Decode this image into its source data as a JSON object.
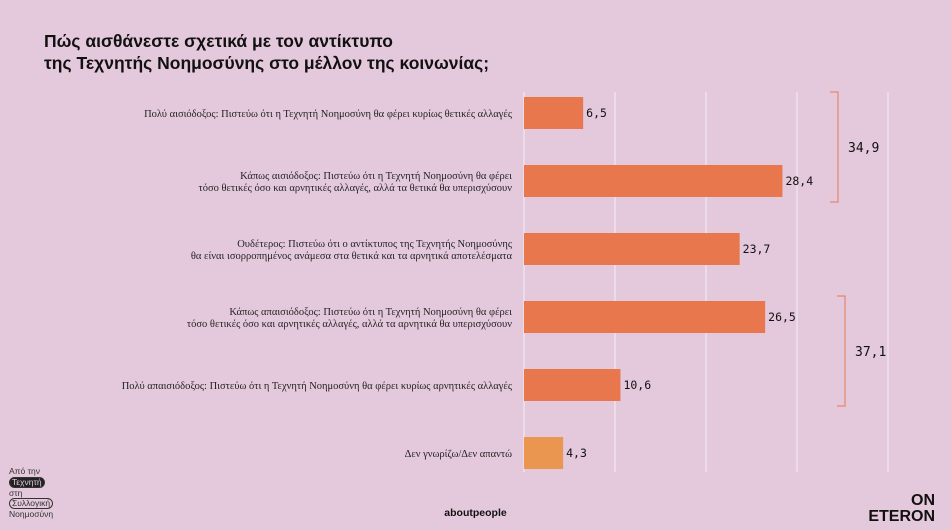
{
  "title": {
    "line1": "Πώς αισθάνεστε σχετικά με τον αντίκτυπο",
    "line2": "της Τεχνητής Νοημοσύνης στο μέλλον της κοινωνίας;"
  },
  "colors": {
    "background": "#e4c9dc",
    "bar": "#e8774e",
    "bar_last": "#ea9550",
    "bracket": "#e8774e",
    "grid": "#f3eef2"
  },
  "chart_data": {
    "type": "bar",
    "orientation": "horizontal",
    "categories": [
      [
        "Πολύ αισιόδοξος: Πιστεύω ότι η Τεχνητή Νοημοσύνη θα φέρει κυρίως θετικές αλλαγές"
      ],
      [
        "Κάπως αισιόδοξος: Πιστεύω ότι η Τεχνητή Νοημοσύνη θα φέρει",
        "τόσο θετικές όσο και αρνητικές αλλαγές, αλλά τα θετικά θα υπερισχύσουν"
      ],
      [
        "Ουδέτερος: Πιστεύω ότι ο αντίκτυπος της Τεχνητής Νοημοσύνης",
        "θα είναι ισορροπημένος ανάμεσα στα θετικά και τα αρνητικά αποτελέσματα"
      ],
      [
        "Κάπως απαισιόδοξος: Πιστεύω ότι η Τεχνητή Νοημοσύνη θα φέρει",
        "τόσο θετικές όσο και αρνητικές αλλαγές, αλλά τα αρνητικά θα υπερισχύσουν"
      ],
      [
        "Πολύ απαισιόδοξος: Πιστεύω ότι η Τεχνητή Νοημοσύνη θα φέρει κυρίως αρνητικές αλλαγές"
      ],
      [
        "Δεν γνωρίζω/Δεν απαντώ"
      ]
    ],
    "values": [
      6.5,
      28.4,
      23.7,
      26.5,
      10.6,
      4.3
    ],
    "value_labels": [
      "6,5",
      "28,4",
      "23,7",
      "26,5",
      "10,6",
      "4,3"
    ],
    "xlim": [
      0,
      40
    ],
    "grid": true,
    "groups": [
      {
        "label": "34,9",
        "value": 34.9,
        "from": 0,
        "to": 1
      },
      {
        "label": "37,1",
        "value": 37.1,
        "from": 3,
        "to": 4
      }
    ]
  },
  "footer": {
    "left_line1": "Από την",
    "left_line2": "Τεχνητή",
    "left_line3": "στη",
    "left_line4": "Συλλογική",
    "left_line5": "Νοημοσύνη",
    "center_brand": "aboutpeople",
    "right_brand_line1": "ON",
    "right_brand_line2": "ETERON"
  }
}
